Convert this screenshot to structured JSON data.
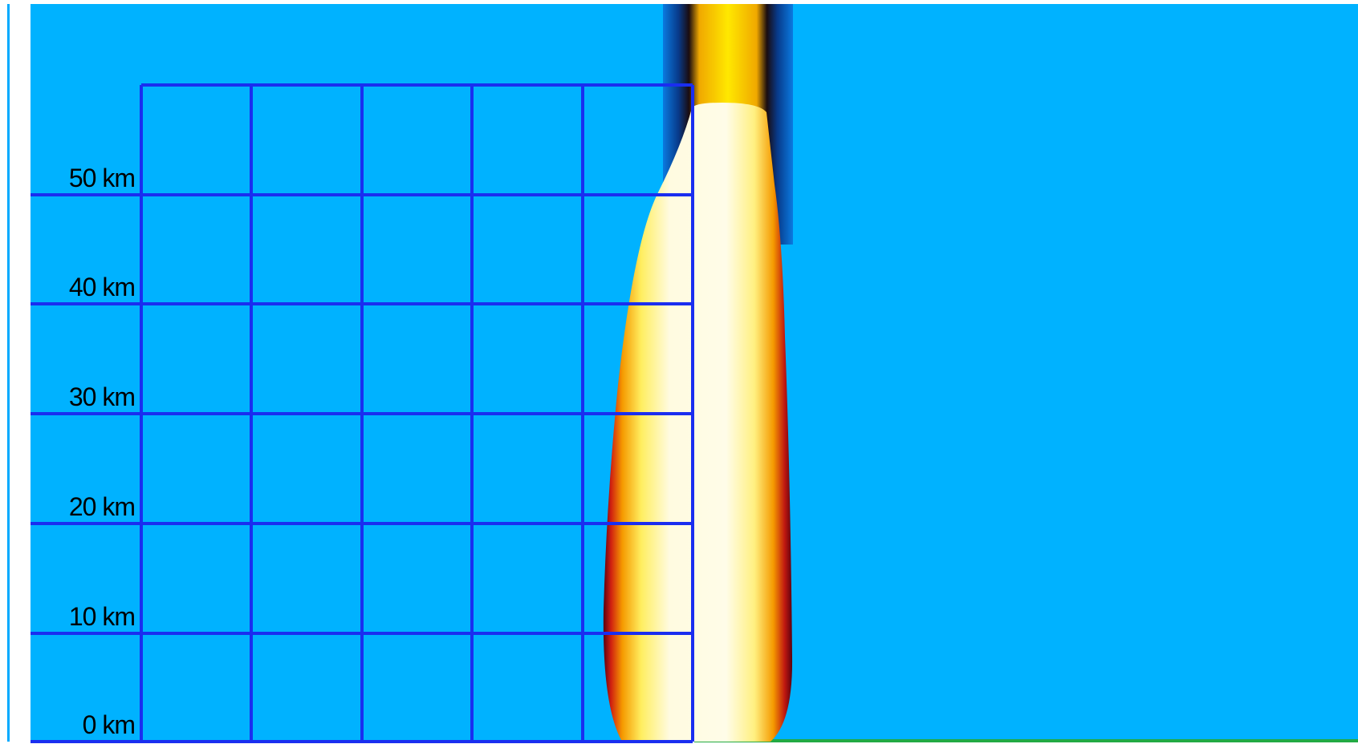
{
  "scale_labels": [
    "0 km",
    "10 km",
    "20 km",
    "30 km",
    "40 km",
    "50 km"
  ]
}
